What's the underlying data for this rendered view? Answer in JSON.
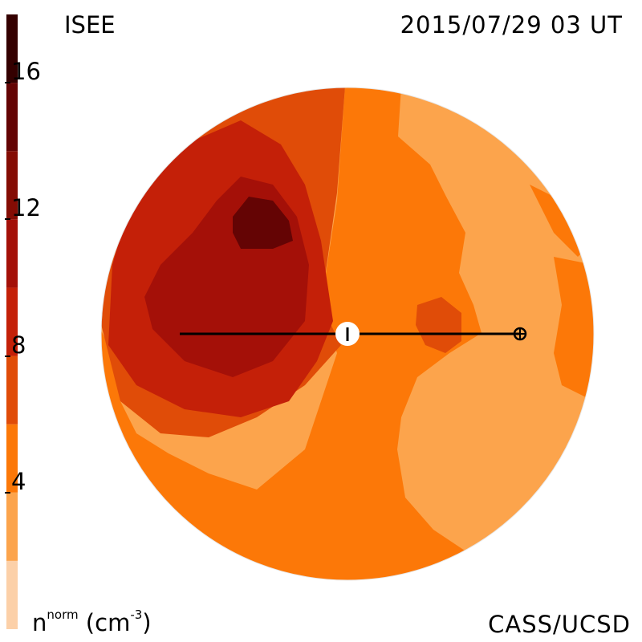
{
  "header": {
    "instrument": "ISEE",
    "timestamp": "2015/07/29 03 UT"
  },
  "footer": {
    "units_base": "n",
    "units_sup": "norm",
    "units_open": " (cm",
    "units_exp": "-3",
    "units_close": ")",
    "credit": "CASS/UCSD"
  },
  "colorbar": {
    "min": 0,
    "max": 18,
    "ticks": [
      {
        "value": 16,
        "label": "16"
      },
      {
        "value": 12,
        "label": "12"
      },
      {
        "value": 8,
        "label": "8"
      },
      {
        "value": 4,
        "label": "4"
      }
    ],
    "colors": [
      "#fcd0a8",
      "#fca44c",
      "#fc7808",
      "#e04c08",
      "#c42008",
      "#a41008",
      "#840c04",
      "#640404",
      "#340000"
    ],
    "bin_edges": [
      0,
      2,
      4,
      6,
      8,
      10,
      12,
      14,
      16,
      18
    ]
  },
  "markers": {
    "sun_symbol": "sun-icon",
    "earth_symbol": "earth-icon"
  }
}
